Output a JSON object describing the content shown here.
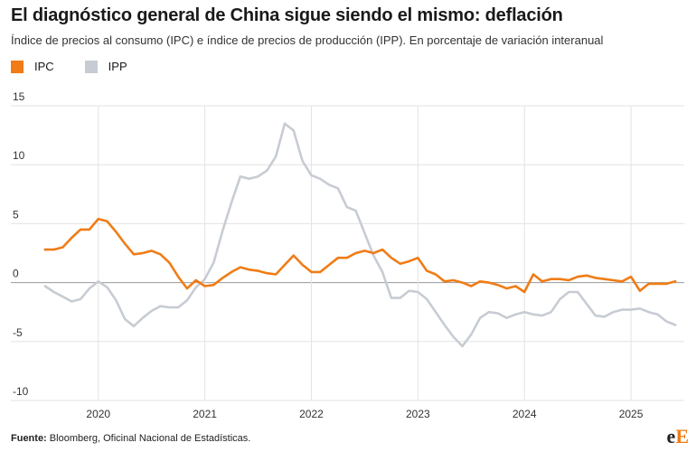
{
  "title": "El diagnóstico general de China sigue siendo el mismo: deflación",
  "subtitle": "Índice de precios al consumo (IPC) e índice de precios de producción (IPP). En porcentaje de variación interanual",
  "source_label": "Fuente:",
  "source_text": "Bloomberg, Oficinal Nacional de Estadísticas.",
  "logo": {
    "e": "e",
    "E": "E"
  },
  "colors": {
    "ipc": "#f07c16",
    "ipp": "#c7ccd3",
    "grid": "#e3e3e3",
    "zero": "#999999"
  },
  "chart_data": {
    "type": "line",
    "ylim": [
      -10,
      15
    ],
    "y_ticks": [
      15,
      10,
      5,
      0,
      -5,
      -10
    ],
    "x_tick_labels": [
      "2020",
      "2021",
      "2022",
      "2023",
      "2024",
      "2025"
    ],
    "x_range": [
      "2019-06",
      "2025-07"
    ],
    "legend": "top-left",
    "grid": true,
    "series": [
      {
        "name": "IPC",
        "color": "#f07c16",
        "x": [
          "2019-07",
          "2019-08",
          "2019-09",
          "2019-10",
          "2019-11",
          "2019-12",
          "2020-01",
          "2020-02",
          "2020-03",
          "2020-04",
          "2020-05",
          "2020-06",
          "2020-07",
          "2020-08",
          "2020-09",
          "2020-10",
          "2020-11",
          "2020-12",
          "2021-01",
          "2021-02",
          "2021-03",
          "2021-04",
          "2021-05",
          "2021-06",
          "2021-07",
          "2021-08",
          "2021-09",
          "2021-10",
          "2021-11",
          "2021-12",
          "2022-01",
          "2022-02",
          "2022-03",
          "2022-04",
          "2022-05",
          "2022-06",
          "2022-07",
          "2022-08",
          "2022-09",
          "2022-10",
          "2022-11",
          "2022-12",
          "2023-01",
          "2023-02",
          "2023-03",
          "2023-04",
          "2023-05",
          "2023-06",
          "2023-07",
          "2023-08",
          "2023-09",
          "2023-10",
          "2023-11",
          "2023-12",
          "2024-01",
          "2024-02",
          "2024-03",
          "2024-04",
          "2024-05",
          "2024-06",
          "2024-07",
          "2024-08",
          "2024-09",
          "2024-10",
          "2024-11",
          "2024-12",
          "2025-01",
          "2025-02",
          "2025-03",
          "2025-04",
          "2025-05",
          "2025-06"
        ],
        "values": [
          2.8,
          2.8,
          3.0,
          3.8,
          4.5,
          4.5,
          5.4,
          5.2,
          4.3,
          3.3,
          2.4,
          2.5,
          2.7,
          2.4,
          1.7,
          0.5,
          -0.5,
          0.2,
          -0.3,
          -0.2,
          0.4,
          0.9,
          1.3,
          1.1,
          1.0,
          0.8,
          0.7,
          1.5,
          2.3,
          1.5,
          0.9,
          0.9,
          1.5,
          2.1,
          2.1,
          2.5,
          2.7,
          2.5,
          2.8,
          2.1,
          1.6,
          1.8,
          2.1,
          1.0,
          0.7,
          0.1,
          0.2,
          0.0,
          -0.3,
          0.1,
          0.0,
          -0.2,
          -0.5,
          -0.3,
          -0.8,
          0.7,
          0.1,
          0.3,
          0.3,
          0.2,
          0.5,
          0.6,
          0.4,
          0.3,
          0.2,
          0.1,
          0.5,
          -0.7,
          -0.1,
          -0.1,
          -0.1,
          0.1
        ]
      },
      {
        "name": "IPP",
        "color": "#c7ccd3",
        "x": [
          "2019-07",
          "2019-08",
          "2019-09",
          "2019-10",
          "2019-11",
          "2019-12",
          "2020-01",
          "2020-02",
          "2020-03",
          "2020-04",
          "2020-05",
          "2020-06",
          "2020-07",
          "2020-08",
          "2020-09",
          "2020-10",
          "2020-11",
          "2020-12",
          "2021-01",
          "2021-02",
          "2021-03",
          "2021-04",
          "2021-05",
          "2021-06",
          "2021-07",
          "2021-08",
          "2021-09",
          "2021-10",
          "2021-11",
          "2021-12",
          "2022-01",
          "2022-02",
          "2022-03",
          "2022-04",
          "2022-05",
          "2022-06",
          "2022-07",
          "2022-08",
          "2022-09",
          "2022-10",
          "2022-11",
          "2022-12",
          "2023-01",
          "2023-02",
          "2023-03",
          "2023-04",
          "2023-05",
          "2023-06",
          "2023-07",
          "2023-08",
          "2023-09",
          "2023-10",
          "2023-11",
          "2023-12",
          "2024-01",
          "2024-02",
          "2024-03",
          "2024-04",
          "2024-05",
          "2024-06",
          "2024-07",
          "2024-08",
          "2024-09",
          "2024-10",
          "2024-11",
          "2024-12",
          "2025-01",
          "2025-02",
          "2025-03",
          "2025-04",
          "2025-05",
          "2025-06"
        ],
        "values": [
          -0.3,
          -0.8,
          -1.2,
          -1.6,
          -1.4,
          -0.5,
          0.1,
          -0.4,
          -1.5,
          -3.1,
          -3.7,
          -3.0,
          -2.4,
          -2.0,
          -2.1,
          -2.1,
          -1.5,
          -0.4,
          0.3,
          1.7,
          4.4,
          6.8,
          9.0,
          8.8,
          9.0,
          9.5,
          10.7,
          13.5,
          12.9,
          10.3,
          9.1,
          8.8,
          8.3,
          8.0,
          6.4,
          6.1,
          4.2,
          2.3,
          0.9,
          -1.3,
          -1.3,
          -0.7,
          -0.8,
          -1.4,
          -2.5,
          -3.6,
          -4.6,
          -5.4,
          -4.4,
          -3.0,
          -2.5,
          -2.6,
          -3.0,
          -2.7,
          -2.5,
          -2.7,
          -2.8,
          -2.5,
          -1.4,
          -0.8,
          -0.8,
          -1.8,
          -2.8,
          -2.9,
          -2.5,
          -2.3,
          -2.3,
          -2.2,
          -2.5,
          -2.7,
          -3.3,
          -3.6
        ]
      }
    ]
  }
}
